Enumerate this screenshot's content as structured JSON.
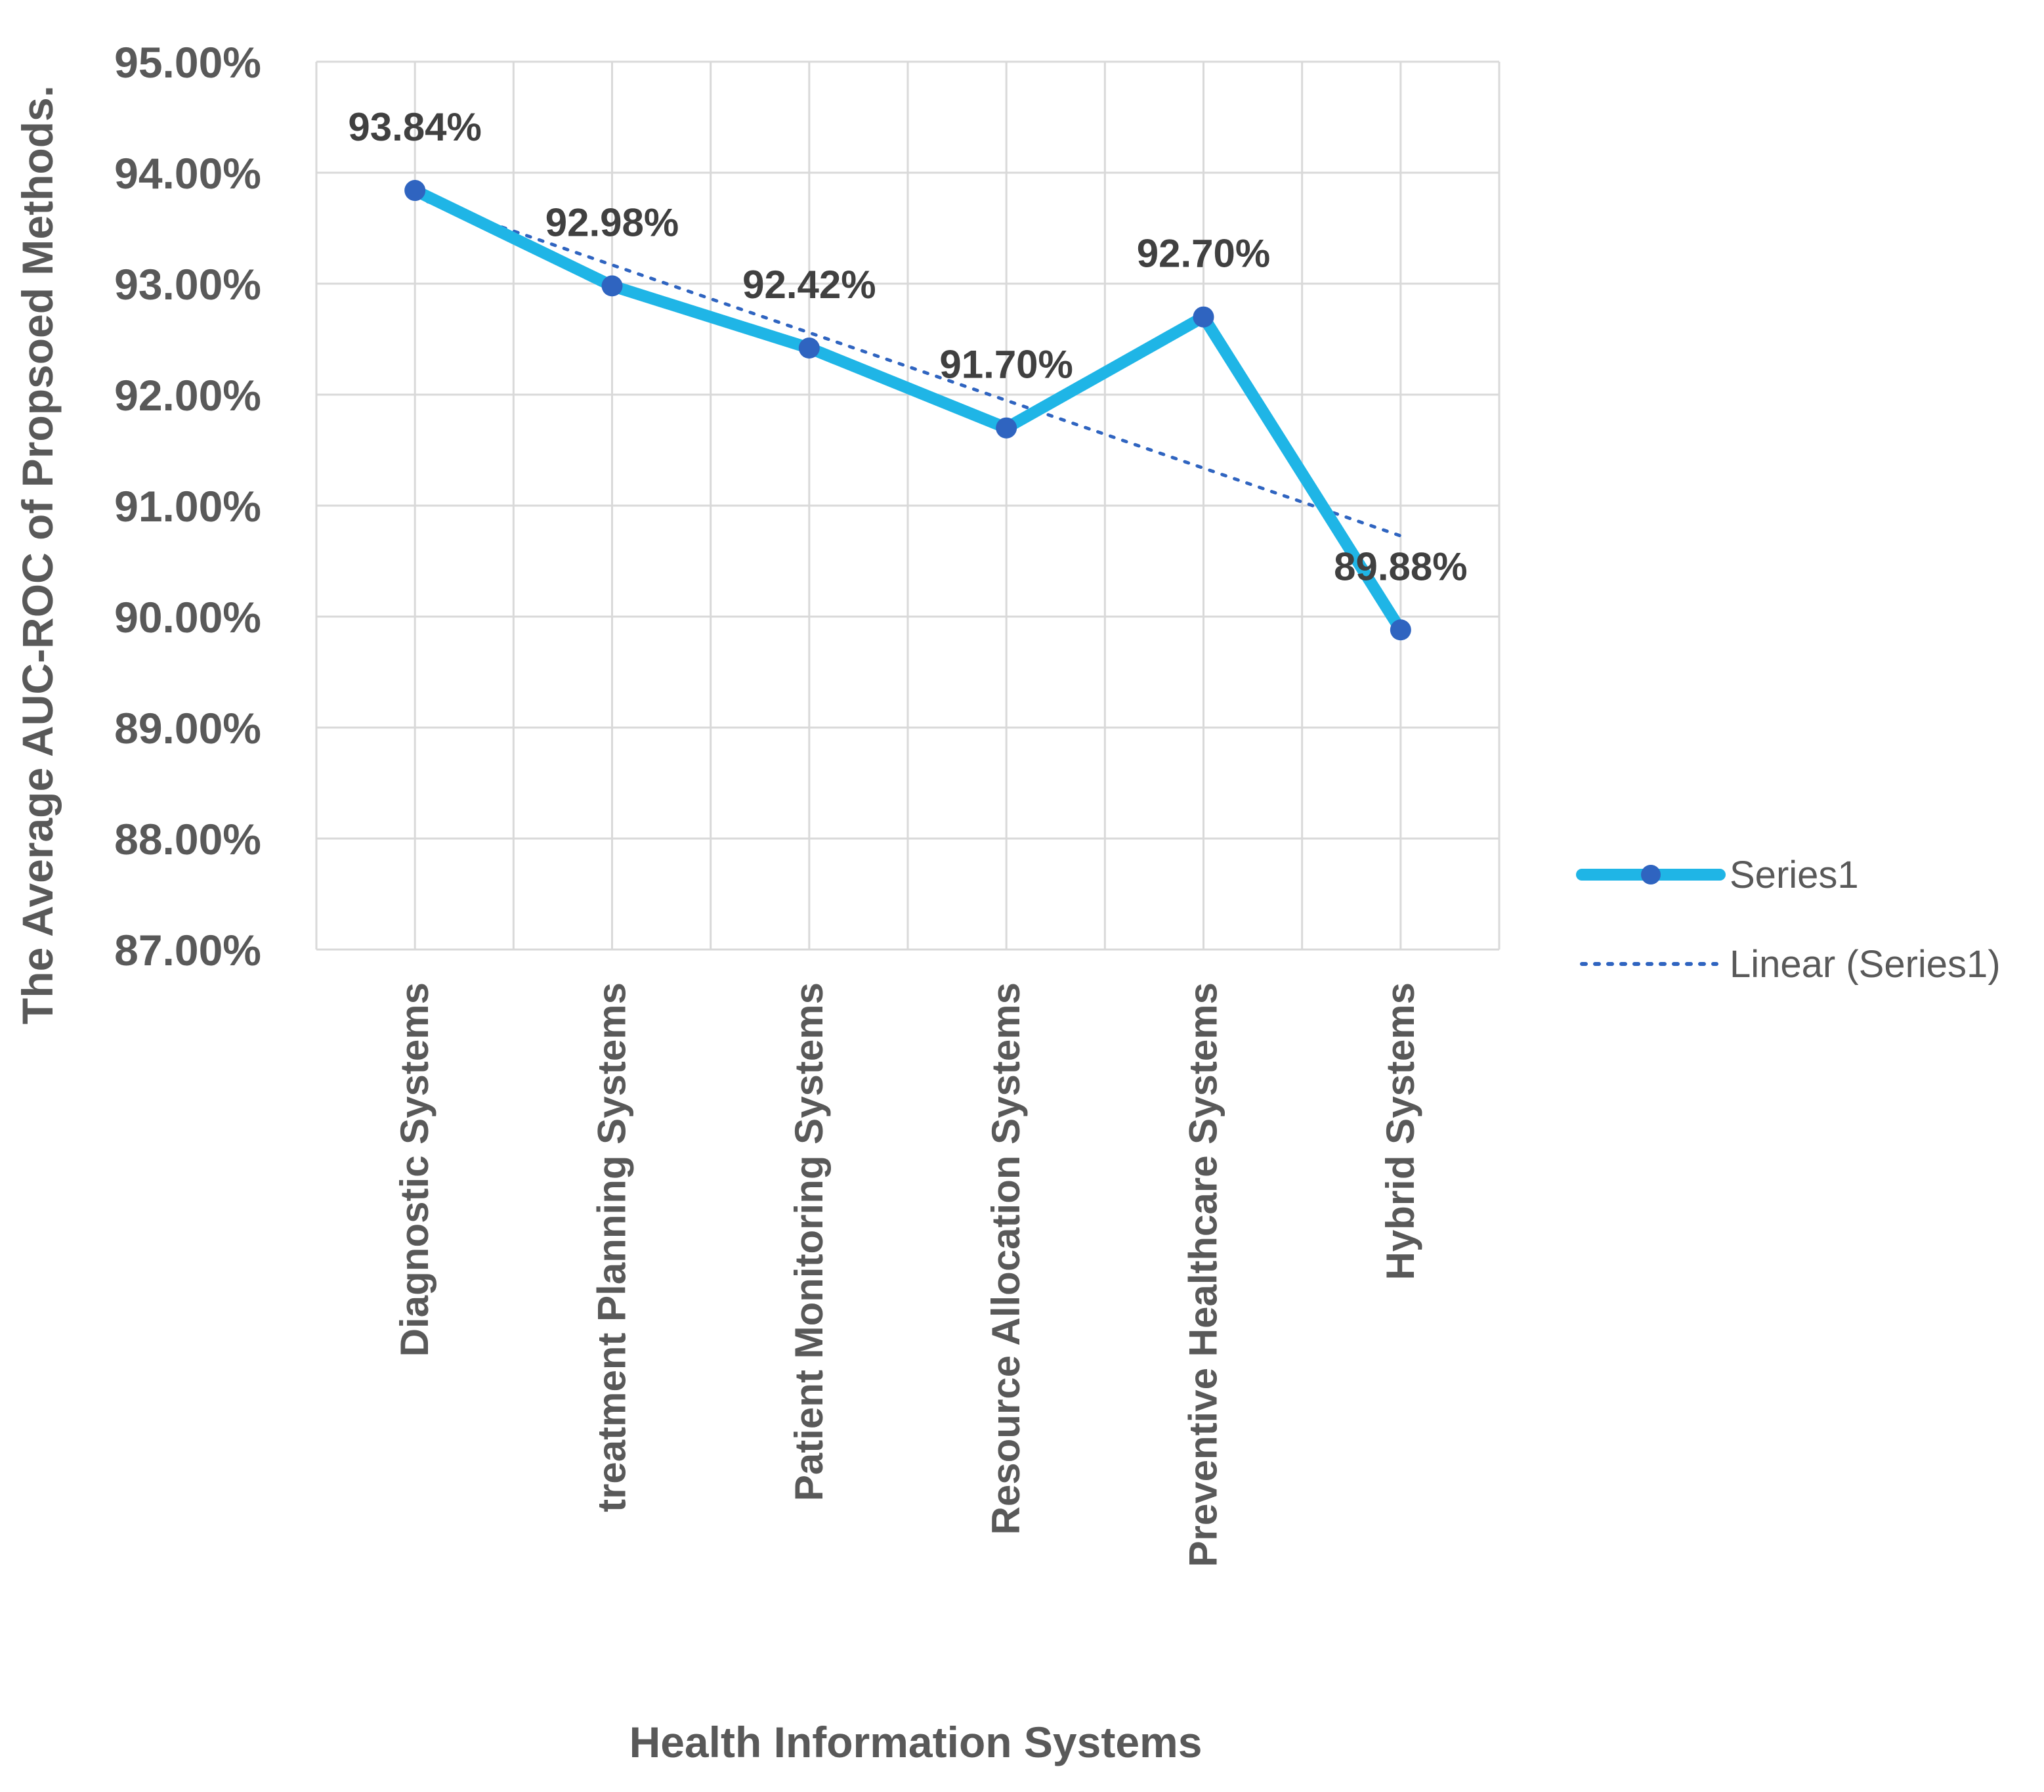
{
  "chart_data": {
    "type": "line",
    "title": "",
    "xlabel": "Health Information Systems",
    "ylabel": "The Average AUC-ROC of Propsoed Methods.",
    "categories": [
      "Diagnostic Systems",
      "treatment Planning Systems",
      "Patient Monitoring Systems",
      "Resource Allocation Systems",
      "Preventive Healthcare Systems",
      "Hybrid Systems"
    ],
    "series": [
      {
        "name": "Series1",
        "values": [
          93.84,
          92.98,
          92.42,
          91.7,
          92.7,
          89.88
        ],
        "labels": [
          "93.84%",
          "92.98%",
          "92.42%",
          "91.70%",
          "92.70%",
          "89.88%"
        ],
        "color": "#1fb5e6",
        "marker_color": "#2f64c0"
      },
      {
        "name": "Linear (Series1)",
        "type": "trendline",
        "color": "#2f64c0"
      }
    ],
    "ylim": [
      87,
      95
    ],
    "yticks": [
      95,
      94,
      93,
      92,
      91,
      90,
      89,
      88,
      87
    ],
    "ytick_labels": [
      "95.00%",
      "94.00%",
      "93.00%",
      "92.00%",
      "91.00%",
      "90.00%",
      "89.00%",
      "88.00%",
      "87.00%"
    ],
    "grid": true,
    "legend": "right"
  }
}
